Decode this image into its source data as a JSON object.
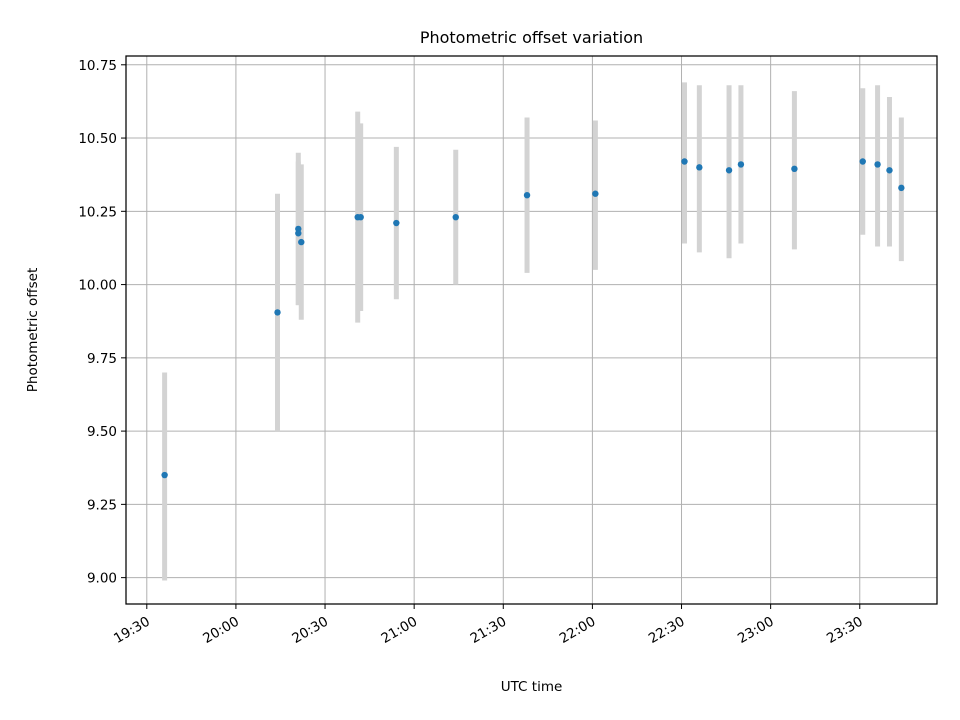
{
  "chart_data": {
    "type": "scatter",
    "title": "Photometric offset variation",
    "xlabel": "UTC time",
    "ylabel": "Photometric offset",
    "x_tick_labels": [
      "19:30",
      "20:00",
      "20:30",
      "21:00",
      "21:30",
      "22:00",
      "22:30",
      "23:00",
      "23:30"
    ],
    "y_tick_labels": [
      "9.00",
      "9.25",
      "9.50",
      "9.75",
      "10.00",
      "10.25",
      "10.50",
      "10.75"
    ],
    "y_ticks": [
      9.0,
      9.25,
      9.5,
      9.75,
      10.0,
      10.25,
      10.5,
      10.75
    ],
    "xlim": [
      "19:23",
      "23:56"
    ],
    "ylim": [
      8.91,
      10.78
    ],
    "grid": true,
    "colors": {
      "point": "#1f77b4",
      "errorbar": "#d3d3d3",
      "grid": "#b0b0b0"
    },
    "points": [
      {
        "x": "19:36",
        "y": 9.35,
        "ylow": 8.99,
        "yhigh": 9.7
      },
      {
        "x": "20:14",
        "y": 9.905,
        "ylow": 9.5,
        "yhigh": 10.31
      },
      {
        "x": "20:21",
        "y": 10.19,
        "ylow": 9.93,
        "yhigh": 10.45
      },
      {
        "x": "20:21",
        "y": 10.175,
        "ylow": 9.93,
        "yhigh": 10.42
      },
      {
        "x": "20:22",
        "y": 10.145,
        "ylow": 9.88,
        "yhigh": 10.41
      },
      {
        "x": "20:41",
        "y": 10.23,
        "ylow": 9.87,
        "yhigh": 10.59
      },
      {
        "x": "20:42",
        "y": 10.23,
        "ylow": 9.91,
        "yhigh": 10.55
      },
      {
        "x": "20:54",
        "y": 10.21,
        "ylow": 9.95,
        "yhigh": 10.47
      },
      {
        "x": "21:14",
        "y": 10.23,
        "ylow": 10.0,
        "yhigh": 10.46
      },
      {
        "x": "21:38",
        "y": 10.305,
        "ylow": 10.04,
        "yhigh": 10.57
      },
      {
        "x": "22:01",
        "y": 10.31,
        "ylow": 10.05,
        "yhigh": 10.56
      },
      {
        "x": "22:31",
        "y": 10.42,
        "ylow": 10.14,
        "yhigh": 10.69
      },
      {
        "x": "22:36",
        "y": 10.4,
        "ylow": 10.11,
        "yhigh": 10.68
      },
      {
        "x": "22:46",
        "y": 10.39,
        "ylow": 10.09,
        "yhigh": 10.68
      },
      {
        "x": "22:50",
        "y": 10.41,
        "ylow": 10.14,
        "yhigh": 10.68
      },
      {
        "x": "23:08",
        "y": 10.395,
        "ylow": 10.12,
        "yhigh": 10.66
      },
      {
        "x": "23:31",
        "y": 10.42,
        "ylow": 10.17,
        "yhigh": 10.67
      },
      {
        "x": "23:36",
        "y": 10.41,
        "ylow": 10.13,
        "yhigh": 10.68
      },
      {
        "x": "23:40",
        "y": 10.39,
        "ylow": 10.13,
        "yhigh": 10.64
      },
      {
        "x": "23:44",
        "y": 10.33,
        "ylow": 10.08,
        "yhigh": 10.57
      }
    ]
  }
}
